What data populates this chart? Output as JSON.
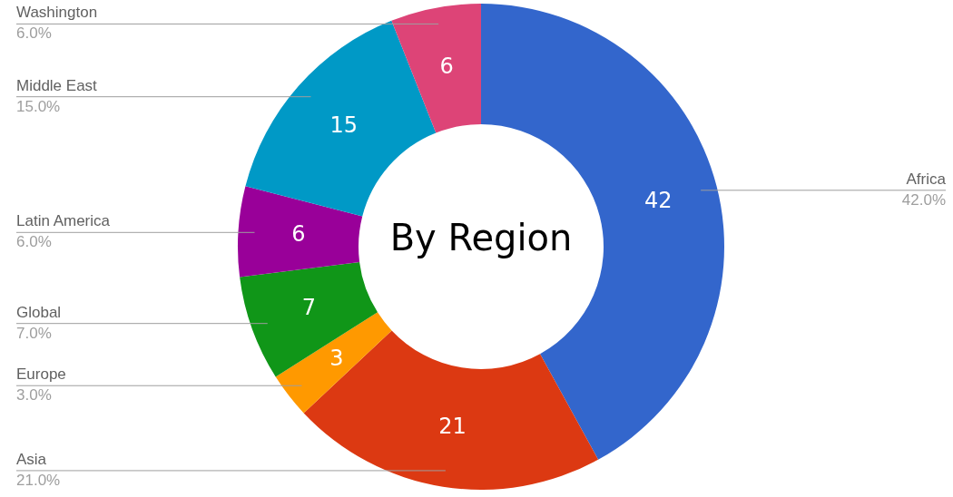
{
  "chart_data": {
    "type": "donut",
    "title": "By Region",
    "categories": [
      "Africa",
      "Asia",
      "Europe",
      "Global",
      "Latin America",
      "Middle East",
      "Washington"
    ],
    "values": [
      42,
      21,
      3,
      7,
      6,
      15,
      6
    ],
    "colors": [
      "#3366cc",
      "#dc3912",
      "#ff9900",
      "#109618",
      "#990099",
      "#0099c6",
      "#dd4477"
    ],
    "value_labels": [
      "42",
      "21",
      "3",
      "7",
      "6",
      "15",
      "6"
    ],
    "annotations": [
      {
        "text": "42.0%",
        "x": "Africa"
      },
      {
        "text": "21.0%",
        "x": "Asia"
      },
      {
        "text": "3.0%",
        "x": "Europe"
      },
      {
        "text": "7.0%",
        "x": "Global"
      },
      {
        "text": "6.0%",
        "x": "Latin America"
      },
      {
        "text": "15.0%",
        "x": "Middle East"
      },
      {
        "text": "6.0%",
        "x": "Washington"
      }
    ],
    "legend": false
  }
}
